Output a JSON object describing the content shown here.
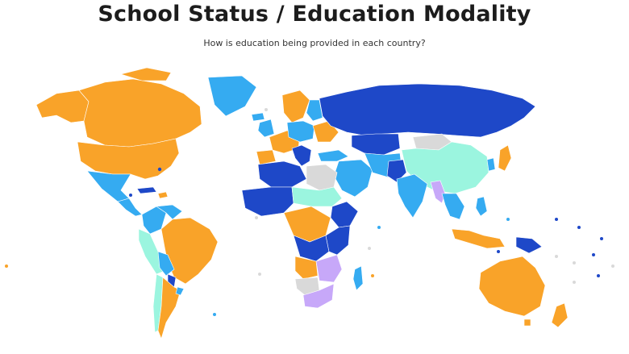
{
  "header": {
    "title": "School Status / Education Modality",
    "subtitle": "How is education being provided in each country?"
  },
  "palette": {
    "orange": "#f9a329",
    "light_blue": "#35abf1",
    "dark_blue": "#1e48c8",
    "mint": "#9bf5df",
    "lavender": "#c7a8f9",
    "gray": "#d9d9d9"
  }
}
